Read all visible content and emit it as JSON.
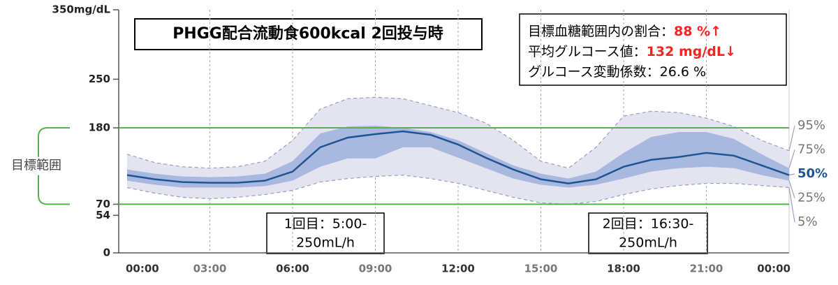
{
  "chart_data": {
    "type": "agp",
    "title": "PHGG配合流動食600kcal 2回投与時",
    "x": [
      0,
      1,
      2,
      3,
      4,
      5,
      6,
      7,
      8,
      9,
      10,
      11,
      12,
      13,
      14,
      15,
      16,
      17,
      18,
      19,
      20,
      21,
      22,
      23,
      24
    ],
    "xlim": [
      0,
      24
    ],
    "xticks": [
      {
        "value": 0,
        "label": "00:00"
      },
      {
        "value": 3,
        "label": "03:00"
      },
      {
        "value": 6,
        "label": "06:00"
      },
      {
        "value": 9,
        "label": "09:00"
      },
      {
        "value": 12,
        "label": "12:00"
      },
      {
        "value": 15,
        "label": "15:00"
      },
      {
        "value": 18,
        "label": "18:00"
      },
      {
        "value": 21,
        "label": "21:00"
      },
      {
        "value": 24,
        "label": "00:00"
      }
    ],
    "ylim": [
      0,
      350
    ],
    "yticks": [
      0,
      54,
      70,
      180,
      250,
      {
        "value": 350,
        "label": "350mg/dL"
      }
    ],
    "grid": true,
    "target_range": [
      70,
      180
    ],
    "target_range_label": "目標範囲",
    "target_color": "#4cb848",
    "series": [
      {
        "name": "95%",
        "color": "#9a9cc4",
        "values": [
          142,
          130,
          124,
          122,
          124,
          132,
          162,
          207,
          222,
          224,
          222,
          212,
          202,
          187,
          162,
          132,
          122,
          152,
          197,
          204,
          202,
          194,
          182,
          162,
          147
        ]
      },
      {
        "name": "75%",
        "color": "#8fa3d4",
        "values": [
          120,
          114,
          110,
          109,
          110,
          114,
          132,
          172,
          182,
          183,
          180,
          174,
          162,
          144,
          126,
          114,
          107,
          117,
          144,
          167,
          174,
          174,
          164,
          142,
          122
        ]
      },
      {
        "name": "50%",
        "color": "#1f5494",
        "values": [
          112,
          106,
          102,
          101,
          101,
          104,
          117,
          152,
          166,
          171,
          175,
          170,
          156,
          137,
          120,
          106,
          100,
          106,
          124,
          134,
          138,
          144,
          140,
          126,
          112
        ]
      },
      {
        "name": "25%",
        "color": "#8fa3d4",
        "values": [
          104,
          98,
          94,
          94,
          94,
          96,
          104,
          124,
          136,
          136,
          152,
          152,
          137,
          122,
          107,
          98,
          94,
          98,
          107,
          117,
          122,
          124,
          122,
          112,
          104
        ]
      },
      {
        "name": "5%",
        "color": "#9a9cc4",
        "values": [
          94,
          86,
          80,
          78,
          80,
          84,
          90,
          102,
          107,
          110,
          112,
          107,
          100,
          90,
          80,
          72,
          70,
          74,
          84,
          92,
          97,
          100,
          100,
          97,
          94
        ]
      }
    ],
    "outer_band_color": "#e4e4f1",
    "inner_band_color": "#a9b8de",
    "stats": [
      {
        "label": "目標血糖範囲内の割合：",
        "value": "88 %↑"
      },
      {
        "label": "平均グルコース値：",
        "value": "132 mg/dL↓"
      },
      {
        "label": "グルコース変動係数：26.6 %"
      }
    ],
    "highlight_color": "#ff2020",
    "annotations": [
      {
        "lines": [
          "1回目：5:00-",
          "250mL/h"
        ]
      },
      {
        "lines": [
          "2回目：16:30-",
          "250mL/h"
        ]
      }
    ]
  }
}
